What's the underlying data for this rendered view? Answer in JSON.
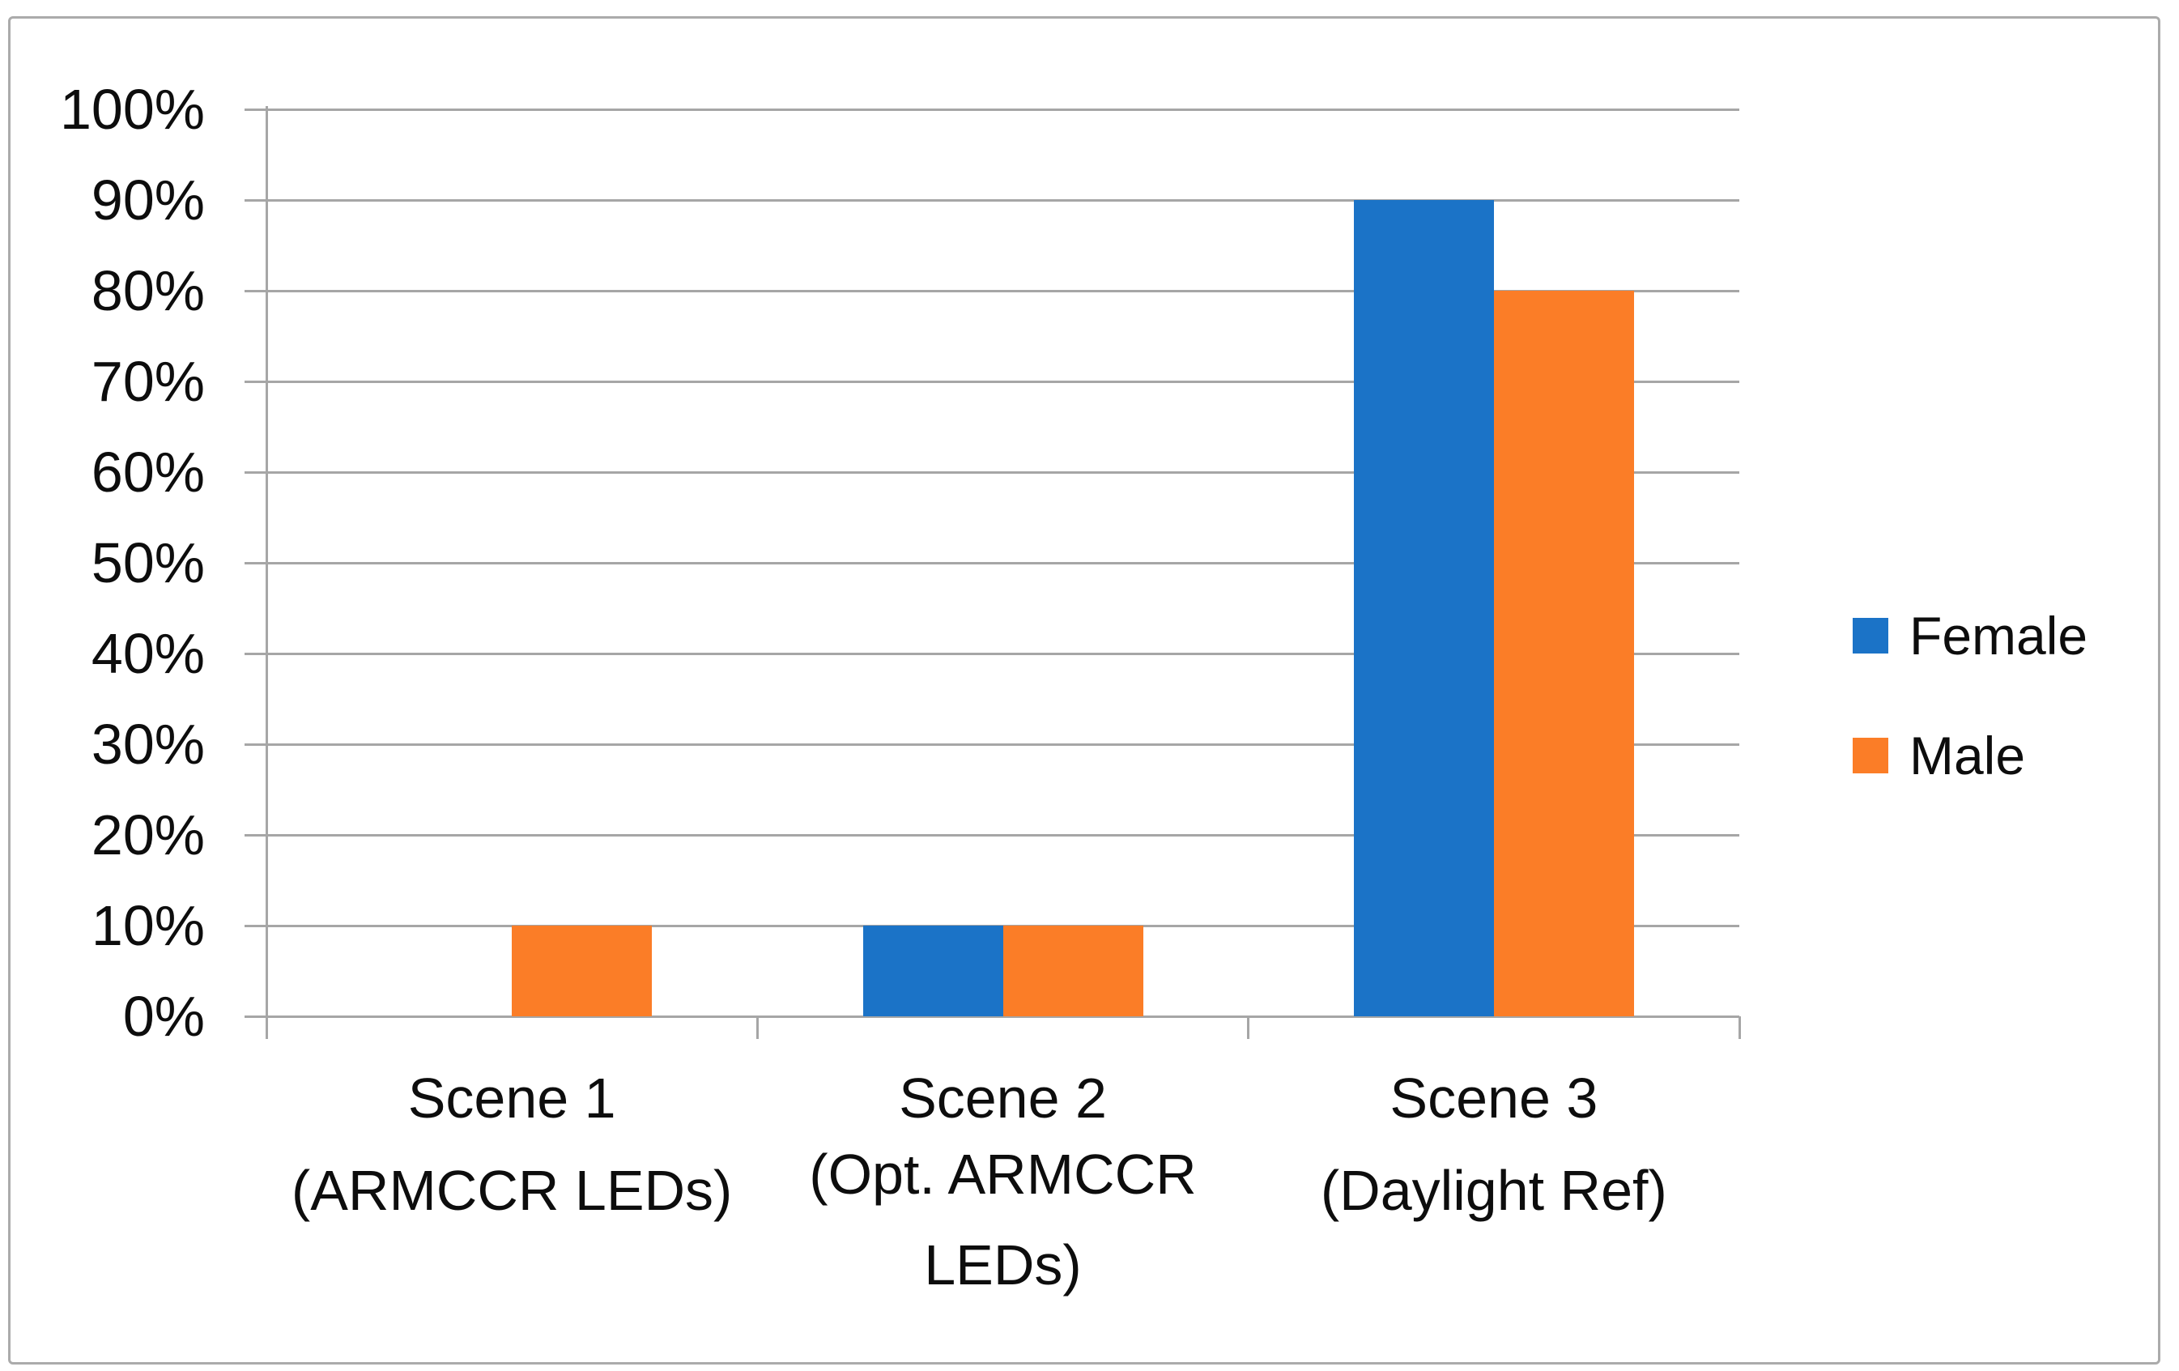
{
  "window": {
    "background": "#ffffff",
    "border_color": "#ababab"
  },
  "chart_data": {
    "type": "bar",
    "title": "",
    "categories": [
      "Scene 1 (ARMCCR LEDs)",
      "Scene 2 (Opt. ARMCCR LEDs)",
      "Scene 3 (Daylight Ref)"
    ],
    "category_label_lines": [
      [
        "Scene 1",
        "(ARMCCR LEDs)"
      ],
      [
        "Scene 2",
        "(Opt. ARMCCR",
        "LEDs)"
      ],
      [
        "Scene 3",
        "(Daylight Ref)"
      ]
    ],
    "series": [
      {
        "name": "Female",
        "color": "#1b73c7",
        "values": [
          0,
          10,
          90
        ]
      },
      {
        "name": "Male",
        "color": "#fb7d27",
        "values": [
          10,
          10,
          80
        ]
      }
    ],
    "values_unit": "%",
    "xlabel": "",
    "ylabel": "",
    "ylim": [
      0,
      100
    ],
    "ytick_step": 10,
    "ytick_labels": [
      "0%",
      "10%",
      "20%",
      "30%",
      "40%",
      "50%",
      "60%",
      "70%",
      "80%",
      "90%",
      "100%"
    ],
    "grid": true,
    "gridline_color": "#a6a6a6",
    "axis_color": "#a6a6a6",
    "text_color": "#0d0d0d",
    "legend_position": "right"
  }
}
